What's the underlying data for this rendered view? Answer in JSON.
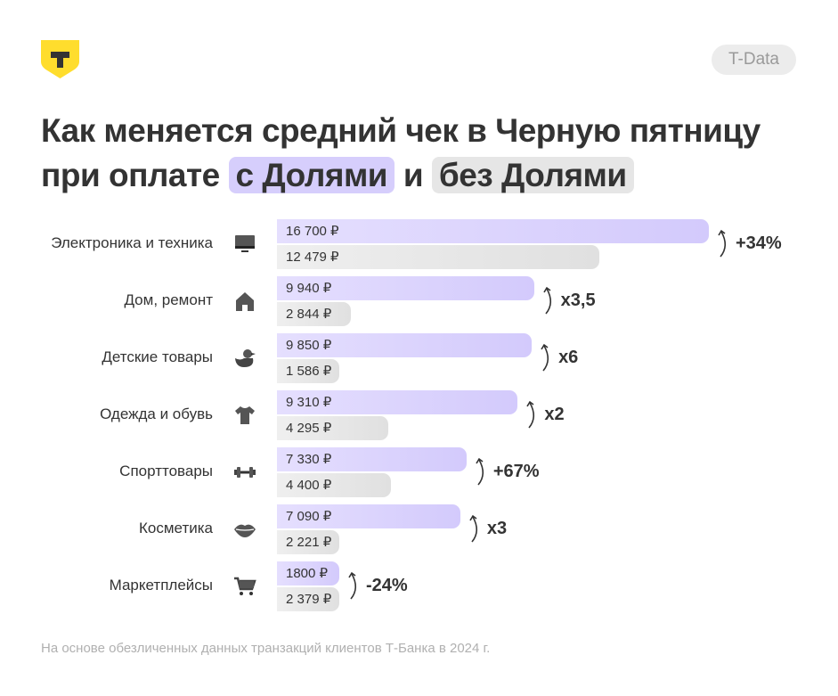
{
  "brand": {
    "logo_text": "T",
    "tag": "T-Data",
    "color": "#ffdd2d"
  },
  "title": {
    "line1": "Как меняется средний чек в Черную пятницу",
    "line2_prefix": "при оплате",
    "with": "с Долями",
    "and": "и",
    "without": "без Долями"
  },
  "footnote": "На основе обезличенных данных транзакций клиентов Т-Банка в 2024 г.",
  "chart_data": {
    "type": "bar",
    "orientation": "horizontal",
    "categories": [
      "Электроника и техника",
      "Дом, ремонт",
      "Детские товары",
      "Одежда и обувь",
      "Спорттовары",
      "Косметика",
      "Маркетплейсы"
    ],
    "icons": [
      "monitor-icon",
      "house-icon",
      "duck-icon",
      "tshirt-icon",
      "dumbbell-icon",
      "lips-icon",
      "cart-icon"
    ],
    "series": [
      {
        "name": "с Долями",
        "color": "#d6cefc",
        "values": [
          16700,
          9940,
          9850,
          9310,
          7330,
          7090,
          1800
        ],
        "labels": [
          "16 700 ₽",
          "9 940 ₽",
          "9 850 ₽",
          "9 310 ₽",
          "7 330 ₽",
          "7 090 ₽",
          "1800 ₽"
        ]
      },
      {
        "name": "без Долями",
        "color": "#e6e6e6",
        "values": [
          12479,
          2844,
          1586,
          4295,
          4400,
          2221,
          2379
        ],
        "labels": [
          "12 479 ₽",
          "2 844 ₽",
          "1 586 ₽",
          "4 295 ₽",
          "4 400 ₽",
          "2 221 ₽",
          "2 379 ₽"
        ]
      }
    ],
    "annotations": [
      "+34%",
      "x3,5",
      "x6",
      "x2",
      "+67%",
      "x3",
      "-24%"
    ]
  }
}
